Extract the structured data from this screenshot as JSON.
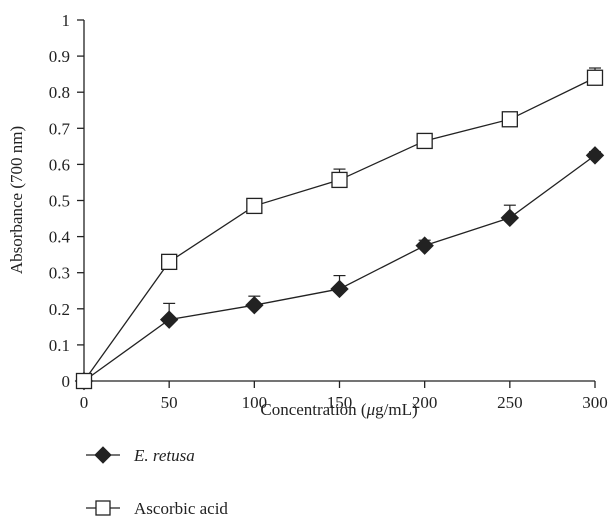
{
  "chart_data": {
    "type": "line",
    "xlabel_parts": [
      "Concentration (",
      "μ",
      "g/mL)"
    ],
    "ylabel": "Absorbance (700 nm)",
    "x": [
      0,
      50,
      100,
      150,
      200,
      250,
      300
    ],
    "xlim": [
      0,
      300
    ],
    "ylim": [
      0,
      1
    ],
    "x_ticks": [
      "0",
      "50",
      "100",
      "150",
      "200",
      "250",
      "300"
    ],
    "y_ticks": [
      "0",
      "0.1",
      "0.2",
      "0.3",
      "0.4",
      "0.5",
      "0.6",
      "0.7",
      "0.8",
      "0.9",
      "1"
    ],
    "grid": false,
    "legend_position": "bottom-left",
    "series": [
      {
        "name": "E. retusa",
        "marker": "filled-diamond",
        "color": "#222222",
        "values": [
          0,
          0.17,
          0.21,
          0.255,
          0.375,
          0.452,
          0.625
        ],
        "error": [
          0,
          0.045,
          0.025,
          0.037,
          0.015,
          0.035,
          0.01
        ]
      },
      {
        "name": "Ascorbic acid",
        "marker": "open-square",
        "color": "#222222",
        "values": [
          0,
          0.33,
          0.485,
          0.557,
          0.665,
          0.725,
          0.84
        ],
        "error": [
          0,
          0,
          0,
          0.03,
          0.012,
          0,
          0.027
        ]
      }
    ]
  }
}
